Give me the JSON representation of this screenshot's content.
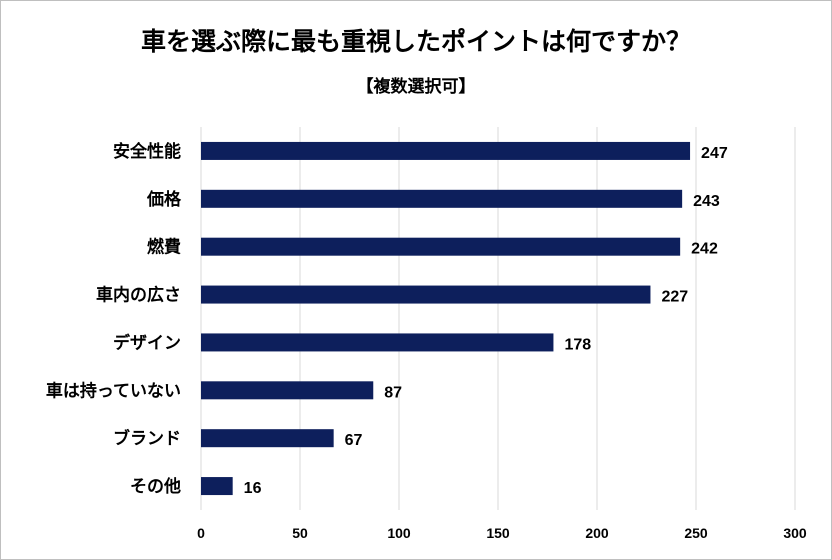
{
  "chart_data": {
    "type": "bar",
    "orientation": "horizontal",
    "title": "車を選ぶ際に最も重視したポイントは何ですか？",
    "subtitle": "【複数選択可】",
    "categories": [
      "安全性能",
      "価格",
      "燃費",
      "車内の広さ",
      "デザイン",
      "車は持っていない",
      "ブランド",
      "その他"
    ],
    "values": [
      247,
      243,
      242,
      227,
      178,
      87,
      67,
      16
    ],
    "xlim": [
      0,
      300
    ],
    "xticks": [
      0,
      50,
      100,
      150,
      200,
      250,
      300
    ],
    "grid": true,
    "bar_color": "#0d1f5c",
    "gridline_color": "#d9d9d9"
  }
}
